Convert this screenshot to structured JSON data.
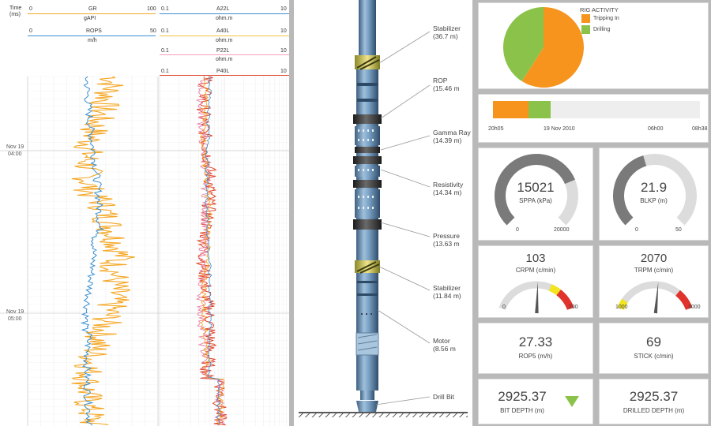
{
  "log": {
    "headers": {
      "time_label": "Time\n(ms)",
      "gr": {
        "name": "GR",
        "min": "0",
        "max": "100",
        "unit": "gAPI",
        "color": "#f5a623"
      },
      "rops": {
        "name": "ROPS",
        "min": "0",
        "max": "50",
        "unit": "m/h",
        "color": "#3a8fd1"
      },
      "a22l": {
        "name": "A22L",
        "min": "0.1",
        "max": "10",
        "unit": "ohm.m",
        "color": "#3a8fd1"
      },
      "a40l": {
        "name": "A40L",
        "min": "0.1",
        "max": "10",
        "unit": "ohm.m",
        "color": "#f5a623"
      },
      "p22l": {
        "name": "P22L",
        "min": "0.1",
        "max": "10",
        "unit": "ohm.m",
        "color": "#e87aa0"
      },
      "p40l": {
        "name": "P40L",
        "min": "0.1",
        "max": "10",
        "unit": "ohm.m",
        "color": "#e0452b"
      }
    },
    "time_labels": [
      {
        "date": "Nov 19",
        "time": "04:00"
      },
      {
        "date": "Nov 19",
        "time": "05:00"
      }
    ]
  },
  "bha": {
    "components": [
      {
        "name": "Stabilizer",
        "depth": "(36.7 m)"
      },
      {
        "name": "ROP",
        "depth": "(15.46 m"
      },
      {
        "name": "Gamma Ray",
        "depth": "(14.39 m)"
      },
      {
        "name": "Resistivity",
        "depth": "(14.34 m)"
      },
      {
        "name": "Pressure",
        "depth": "(13.63 m"
      },
      {
        "name": "Stabilizer",
        "depth": "(11.84 m)"
      },
      {
        "name": "Motor",
        "depth": "(8.56 m"
      },
      {
        "name": "Drill Bit",
        "depth": ""
      }
    ]
  },
  "rig_activity": {
    "title": "RIG ACTIVITY",
    "legend": [
      {
        "label": "Tripping In",
        "color": "#f7941d",
        "fraction": 0.59
      },
      {
        "label": "Drilling",
        "color": "#8bc34a",
        "fraction": 0.41
      }
    ]
  },
  "timeline": {
    "labels": [
      "20h05",
      "19 Nov 2010",
      "06h00",
      "08h38"
    ],
    "segments": [
      {
        "color": "#f7941d",
        "fraction": 0.17
      },
      {
        "color": "#8bc34a",
        "fraction": 0.11
      }
    ],
    "track_color": "#eeeeee"
  },
  "gauges": {
    "sppa": {
      "value": "15021",
      "label": "SPPA (kPa)",
      "min": "0",
      "max": "20000",
      "fill": 0.75
    },
    "blkp": {
      "value": "21.9",
      "label": "BLKP (m)",
      "min": "0",
      "max": "50",
      "fill": 0.44
    },
    "crpm": {
      "value": "103",
      "label": "CRPM (c/min)",
      "min": "0",
      "max": "200",
      "needle": 0.515
    },
    "trpm": {
      "value": "2070",
      "label": "TRPM (c/min)",
      "min": "1000",
      "max": "3000",
      "needle": 0.535
    }
  },
  "readouts": {
    "rop5": {
      "value": "27.33",
      "label": "ROP5 (m/h)"
    },
    "stick": {
      "value": "69",
      "label": "STICK (c/min)"
    },
    "bit_depth": {
      "value": "2925.37",
      "label": "BIT DEPTH (m)",
      "trend_icon": "down-triangle-icon",
      "trend_color": "#8bc34a"
    },
    "drilled_depth": {
      "value": "2925.37",
      "label": "DRILLED DEPTH (m)"
    }
  },
  "colors": {
    "gauge_dark": "#7a7a7a",
    "gauge_light": "#dcdcdc",
    "warn_yellow": "#f2e51d",
    "warn_red": "#e0332b"
  }
}
